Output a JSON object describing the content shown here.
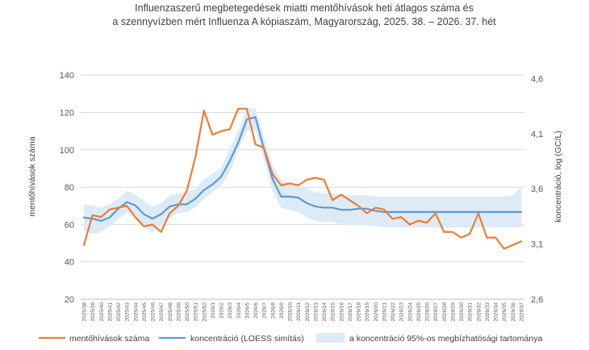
{
  "chart_data": {
    "type": "line",
    "title_lines": [
      "Influenzaszerű megbetegedések miatti mentőhívások heti átlagos száma és",
      "a szennyvízben mért Influenza A kópiaszám, Magyarország, 2025. 38. – 2026. 37. hét"
    ],
    "ylabel_left": "mentőhívások száma",
    "ylabel_right": "koncentráció, log (GC/L)",
    "ylim_left": [
      20,
      150
    ],
    "yticks_left": [
      "20",
      "40",
      "60",
      "80",
      "100",
      "120",
      "140"
    ],
    "ylim_right": [
      2.6,
      4.8
    ],
    "yticks_right": [
      "2,6",
      "3,1",
      "3,6",
      "4,1",
      "4,6"
    ],
    "x": [
      "2025/38",
      "2025/39",
      "2025/40",
      "2025/41",
      "2025/42",
      "2025/43",
      "2025/44",
      "2025/45",
      "2025/46",
      "2025/47",
      "2025/48",
      "2025/49",
      "2025/50",
      "2025/51",
      "2025/52",
      "2026/1",
      "2026/2",
      "2026/3",
      "2026/4",
      "2026/5",
      "2026/6",
      "2026/7",
      "2026/8",
      "2026/9",
      "2026/10",
      "2026/11",
      "2026/12",
      "2026/13",
      "2026/14",
      "2026/15",
      "2026/16",
      "2026/17",
      "2026/18",
      "2026/19",
      "2026/20",
      "2026/21",
      "2026/22",
      "2026/23",
      "2026/24",
      "2026/25",
      "2026/26",
      "2026/27",
      "2026/28",
      "2026/29",
      "2026/30",
      "2026/31",
      "2026/32",
      "2026/33",
      "2026/34",
      "2026/35",
      "2026/36",
      "2026/37"
    ],
    "series": [
      {
        "name": "mentőhívások száma",
        "axis": "left",
        "color": "#ED7D31",
        "values": [
          49,
          65,
          64,
          68,
          69,
          70,
          64,
          59,
          60,
          56,
          66,
          70,
          78,
          96,
          121,
          108,
          110,
          111,
          122,
          122,
          103,
          101,
          87,
          81,
          82,
          81,
          84,
          85,
          84,
          73,
          76,
          73,
          70,
          66,
          69,
          68,
          63,
          64,
          60,
          62,
          61,
          66,
          56,
          56,
          53,
          55,
          66,
          53,
          53,
          47,
          49,
          51
        ]
      },
      {
        "name": "koncentráció (LOESS simítás)",
        "axis": "right",
        "color": "#5B9BD5",
        "values": [
          3.34,
          3.33,
          3.31,
          3.34,
          3.42,
          3.48,
          3.45,
          3.37,
          3.33,
          3.37,
          3.44,
          3.46,
          3.46,
          3.51,
          3.59,
          3.64,
          3.71,
          3.85,
          4.02,
          4.23,
          4.25,
          3.96,
          3.69,
          3.53,
          3.53,
          3.52,
          3.47,
          3.44,
          3.43,
          3.43,
          3.41,
          3.41,
          3.42,
          3.42,
          3.4,
          3.39,
          3.39,
          3.39,
          3.39,
          3.39,
          3.39,
          3.39,
          3.39,
          3.39,
          3.39,
          3.39,
          3.39,
          3.39,
          3.39,
          3.39,
          3.39,
          3.39
        ]
      }
    ],
    "band": {
      "name": "a koncentráció 95%-os megbízhatósági tartománya",
      "axis": "right",
      "color": "#DDEBF7",
      "lower": [
        3.22,
        3.19,
        3.21,
        3.26,
        3.32,
        3.39,
        3.32,
        3.25,
        3.21,
        3.27,
        3.34,
        3.38,
        3.39,
        3.43,
        3.51,
        3.57,
        3.63,
        3.75,
        3.95,
        4.13,
        4.13,
        3.87,
        3.58,
        3.43,
        3.41,
        3.39,
        3.34,
        3.31,
        3.3,
        3.3,
        3.28,
        3.27,
        3.27,
        3.27,
        3.26,
        3.25,
        3.25,
        3.25,
        3.25,
        3.25,
        3.25,
        3.25,
        3.25,
        3.25,
        3.25,
        3.25,
        3.25,
        3.25,
        3.25,
        3.25,
        3.25,
        3.25
      ],
      "upper": [
        3.46,
        3.45,
        3.43,
        3.46,
        3.51,
        3.58,
        3.55,
        3.49,
        3.44,
        3.47,
        3.54,
        3.56,
        3.57,
        3.6,
        3.69,
        3.74,
        3.79,
        3.97,
        4.12,
        4.33,
        4.33,
        4.07,
        3.81,
        3.68,
        3.66,
        3.63,
        3.6,
        3.57,
        3.56,
        3.56,
        3.55,
        3.54,
        3.54,
        3.54,
        3.53,
        3.53,
        3.53,
        3.53,
        3.53,
        3.53,
        3.53,
        3.53,
        3.53,
        3.53,
        3.53,
        3.53,
        3.53,
        3.53,
        3.53,
        3.53,
        3.54,
        3.62
      ]
    },
    "grid": true,
    "legend_position": "bottom"
  }
}
